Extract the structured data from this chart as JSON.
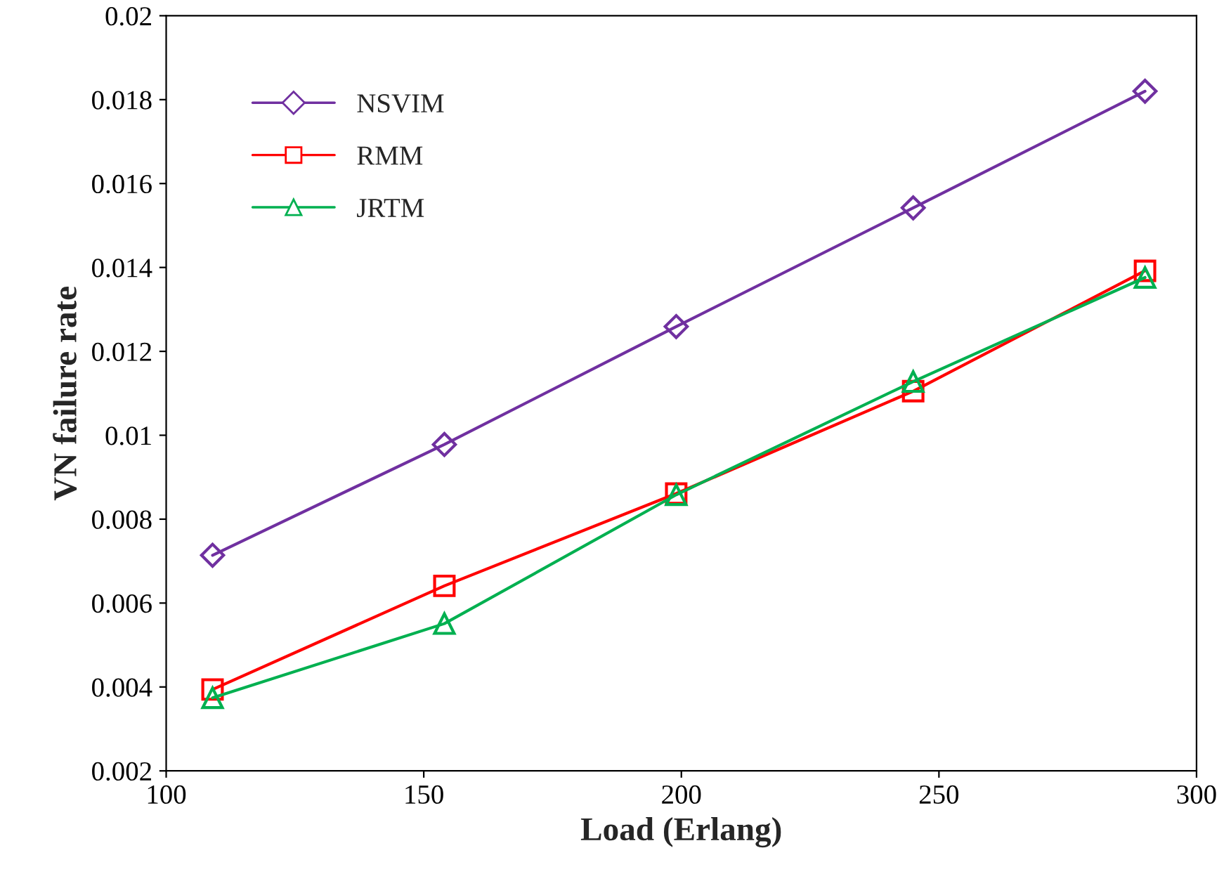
{
  "chart_data": {
    "type": "line",
    "xlabel": "Load (Erlang)",
    "ylabel": "VN failure rate",
    "x": [
      109,
      154,
      199,
      245,
      290
    ],
    "series": [
      {
        "name": "NSVIM",
        "color": "#7030a0",
        "marker": "diamond",
        "values": [
          0.00714,
          0.00978,
          0.01259,
          0.01542,
          0.0182
        ]
      },
      {
        "name": "RMM",
        "color": "#ff0000",
        "marker": "square",
        "values": [
          0.00394,
          0.00641,
          0.00861,
          0.01105,
          0.01392
        ]
      },
      {
        "name": "JRTM",
        "color": "#00b050",
        "marker": "triangle",
        "values": [
          0.00374,
          0.00551,
          0.00858,
          0.01128,
          0.01376
        ]
      }
    ],
    "xlim": [
      100,
      300
    ],
    "xticks": [
      100,
      150,
      200,
      250,
      300
    ],
    "ylim": [
      0.002,
      0.02
    ],
    "yticks": [
      0.002,
      0.004,
      0.006,
      0.008,
      0.01,
      0.012,
      0.014,
      0.016,
      0.018,
      0.02
    ],
    "grid": false,
    "legend": "top left",
    "line_style": "solid"
  }
}
